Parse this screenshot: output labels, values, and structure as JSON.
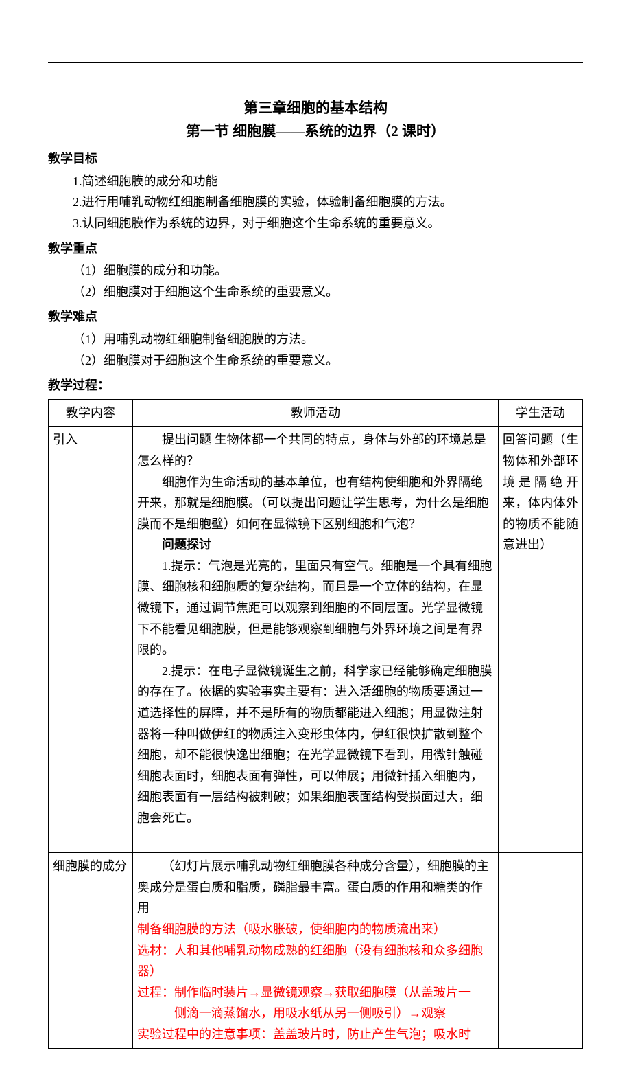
{
  "title_line1": "第三章细胞的基本结构",
  "title_line2": "第一节 细胞膜——系统的边界（2 课时）",
  "goals": {
    "heading": "教学目标",
    "items": [
      "1.简述细胞膜的成分和功能",
      "2.进行用哺乳动物红细胞制备细胞膜的实验，体验制备细胞膜的方法。",
      "3.认同细胞膜作为系统的边界，对于细胞这个生命系统的重要意义。"
    ]
  },
  "key_points": {
    "heading": "教学重点",
    "items": [
      "（1）细胞膜的成分和功能。",
      "（2）细胞膜对于细胞这个生命系统的重要意义。"
    ]
  },
  "difficult_points": {
    "heading": "教学难点",
    "items": [
      "（1）用哺乳动物红细胞制备细胞膜的方法。",
      "（2）细胞膜对于细胞这个生命系统的重要意义。"
    ]
  },
  "process_heading": "教学过程：",
  "table": {
    "headers": {
      "c1": "教学内容",
      "c2": "教师活动",
      "c3": "学生活动"
    },
    "rows": [
      {
        "c1": "引入",
        "c2": {
          "p1": "提出问题 生物体都一个共同的特点，身体与外部的环境总是怎么样的？",
          "p2": "细胞作为生命活动的基本单位，也有结构使细胞和外界隔绝开来，那就是细胞膜。（可以提出问题让学生思考，为什么是细胞膜而不是细胞壁）如何在显微镜下区别细胞和气泡？",
          "p3": "问题探讨",
          "p4": "1.提示：气泡是光亮的，里面只有空气。细胞是一个具有细胞膜、细胞核和细胞质的复杂结构，而且是一个立体的结构，在显微镜下，通过调节焦距可以观察到细胞的不同层面。光学显微镜下不能看见细胞膜，但是能够观察到细胞与外界环境之间是有界限的。",
          "p5": "2.提示：在电子显微镜诞生之前，科学家已经能够确定细胞膜的存在了。依据的实验事实主要有：进入活细胞的物质要通过一道选择性的屏障，并不是所有的物质都能进入细胞；用显微注射器将一种叫做伊红的物质注入变形虫体内，伊红很快扩散到整个细胞，却不能很快逸出细胞；在光学显微镜下看到，用微针触碰细胞表面时，细胞表面有弹性，可以伸展；用微针插入细胞内，细胞表面有一层结构被刺破；如果细胞表面结构受损面过大，细胞会死亡。"
        },
        "c3": "回答问题（生物体和外部环境是隔绝开来，体内体外的物质不能随意进出）"
      },
      {
        "c1": "细胞膜的成分",
        "c2": {
          "black": "（幻灯片展示哺乳动物红细胞膜各种成分含量），细胞膜的主奥成分是蛋白质和脂质，磷脂最丰富。蛋白质的作用和糖类的作用",
          "red": {
            "r1": "制备细胞膜的方法（吸水胀破，使细胞内的物质流出来）",
            "r2": "选材：人和其他哺乳动物成熟的红细胞（没有细胞核和众多细胞器）",
            "r3a": "过程：制作临时装片→显微镜观察→获取细胞膜（从盖玻片一",
            "r3b": "侧滴一滴蒸馏水，用吸水纸从另一侧吸引）→观察",
            "r4": "实验过程中的注意事项：盖盖玻片时，防止产生气泡；吸水时"
          }
        },
        "c3": ""
      }
    ]
  }
}
